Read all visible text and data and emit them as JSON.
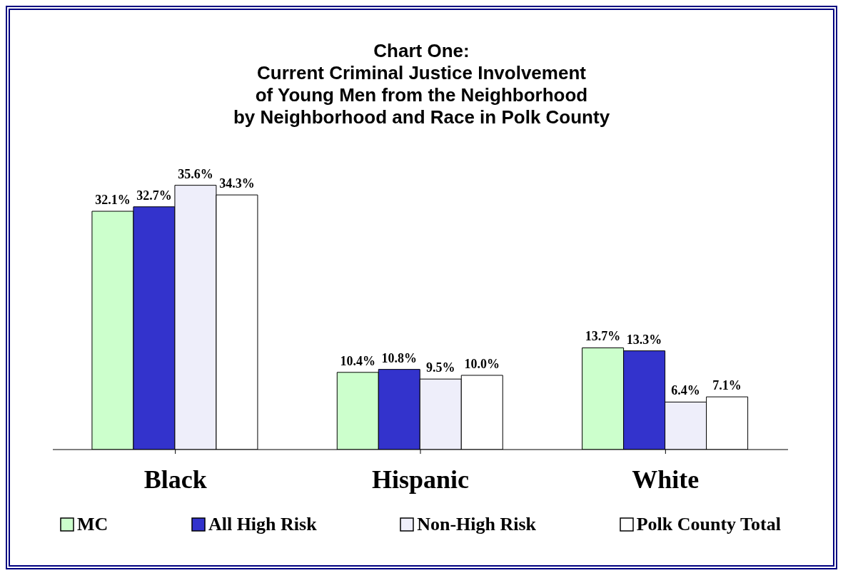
{
  "chart_data": {
    "type": "bar",
    "title": "Chart One:\nCurrent Criminal Justice Involvement\nof Young Men from the Neighborhood\nby Neighborhood and Race in Polk County",
    "categories": [
      "Black",
      "Hispanic",
      "White"
    ],
    "series": [
      {
        "name": "MC",
        "color": "#ccffcc",
        "values": [
          32.1,
          10.4,
          13.7
        ],
        "value_labels": [
          "32.1%",
          "10.4%",
          "13.7%"
        ]
      },
      {
        "name": "All High Risk",
        "color": "#3333cc",
        "values": [
          32.7,
          10.8,
          13.3
        ],
        "value_labels": [
          "32.7%",
          "10.8%",
          "13.3%"
        ]
      },
      {
        "name": "Non-High Risk",
        "color": "#eeeefa",
        "values": [
          35.6,
          9.5,
          6.4
        ],
        "value_labels": [
          "35.6%",
          "9.5%",
          "6.4%"
        ]
      },
      {
        "name": "Polk County Total",
        "color": "#ffffff",
        "values": [
          34.3,
          10.0,
          7.1
        ],
        "value_labels": [
          "34.3%",
          "10.0%",
          "7.1%"
        ]
      }
    ],
    "legend": "bottom",
    "grid": false
  }
}
